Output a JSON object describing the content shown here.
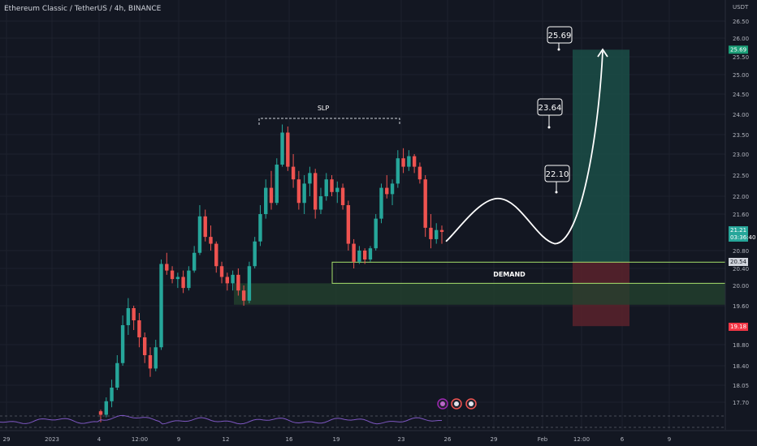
{
  "header": {
    "symbol": "Ethereum Classic / TetherUS",
    "interval": "4h",
    "exchange": "BINANCE",
    "sep1": " / ",
    "sep2": ", "
  },
  "currency": "USDT",
  "colors": {
    "background": "#131722",
    "grid": "#1e222d",
    "up": "#26a69a",
    "down": "#ef5350",
    "text": "#b2b5be",
    "target_zone": "#1b4d47",
    "stop_zone": "#5a222b",
    "demand_zone": "#23412e",
    "demand_line": "#a7e06c",
    "indicator": "#7e57c2",
    "projection": "#ffffff"
  },
  "chart_data": {
    "type": "candlestick",
    "y_ticks": [
      "26.50",
      "26.00",
      "25.50",
      "25.00",
      "24.50",
      "24.00",
      "23.50",
      "23.00",
      "22.50",
      "22.00",
      "21.60",
      "20.80",
      "20.40",
      "20.00",
      "19.60",
      "18.80",
      "18.40",
      "18.05",
      "17.70"
    ],
    "x_ticks": [
      "29",
      "2023",
      "4",
      "12:00",
      "9",
      "12",
      "16",
      "19",
      "23",
      "26",
      "29",
      "Feb",
      "12:00",
      "6",
      "9"
    ],
    "candles": [
      [
        17.52,
        17.55,
        17.3,
        17.45
      ],
      [
        17.45,
        17.8,
        17.4,
        17.72
      ],
      [
        17.72,
        18.15,
        17.6,
        18.0
      ],
      [
        18.0,
        18.6,
        17.95,
        18.45
      ],
      [
        18.45,
        19.4,
        18.4,
        19.2
      ],
      [
        19.2,
        19.75,
        19.0,
        19.55
      ],
      [
        19.55,
        19.6,
        19.1,
        19.3
      ],
      [
        19.3,
        19.45,
        18.75,
        18.95
      ],
      [
        18.95,
        19.05,
        18.45,
        18.6
      ],
      [
        18.6,
        18.75,
        18.2,
        18.35
      ],
      [
        18.35,
        18.9,
        18.3,
        18.75
      ],
      [
        18.75,
        20.6,
        18.7,
        20.5
      ],
      [
        20.5,
        20.75,
        20.25,
        20.35
      ],
      [
        20.35,
        20.45,
        20.05,
        20.15
      ],
      [
        20.15,
        20.3,
        19.95,
        20.2
      ],
      [
        20.2,
        20.35,
        19.85,
        19.95
      ],
      [
        19.95,
        20.45,
        19.9,
        20.35
      ],
      [
        20.35,
        20.9,
        20.3,
        20.75
      ],
      [
        20.75,
        21.8,
        20.7,
        21.55
      ],
      [
        21.55,
        21.7,
        21.0,
        21.1
      ],
      [
        21.1,
        21.35,
        20.8,
        20.95
      ],
      [
        20.95,
        21.0,
        20.3,
        20.45
      ],
      [
        20.45,
        20.55,
        20.05,
        20.2
      ],
      [
        20.2,
        20.3,
        19.9,
        20.05
      ],
      [
        20.05,
        20.35,
        19.9,
        20.25
      ],
      [
        20.25,
        20.4,
        19.8,
        19.9
      ],
      [
        19.9,
        20.0,
        19.6,
        19.7
      ],
      [
        19.7,
        20.55,
        19.65,
        20.45
      ],
      [
        20.45,
        21.1,
        20.4,
        21.0
      ],
      [
        21.0,
        21.8,
        20.9,
        21.6
      ],
      [
        21.6,
        22.4,
        21.5,
        22.2
      ],
      [
        22.2,
        22.6,
        21.7,
        21.85
      ],
      [
        21.85,
        22.9,
        21.8,
        22.75
      ],
      [
        22.75,
        23.75,
        22.7,
        23.55
      ],
      [
        23.55,
        23.7,
        22.6,
        22.7
      ],
      [
        22.7,
        23.0,
        22.2,
        22.4
      ],
      [
        22.4,
        22.6,
        21.7,
        21.85
      ],
      [
        21.85,
        22.5,
        21.6,
        22.3
      ],
      [
        22.3,
        22.7,
        22.0,
        22.55
      ],
      [
        22.55,
        22.65,
        21.5,
        21.7
      ],
      [
        21.7,
        22.2,
        21.6,
        22.0
      ],
      [
        22.0,
        22.55,
        21.9,
        22.4
      ],
      [
        22.4,
        22.5,
        22.0,
        22.1
      ],
      [
        22.1,
        22.35,
        21.85,
        22.2
      ],
      [
        22.2,
        22.3,
        21.7,
        21.8
      ],
      [
        21.8,
        21.9,
        20.8,
        20.95
      ],
      [
        20.95,
        21.05,
        20.4,
        20.55
      ],
      [
        20.55,
        20.9,
        20.5,
        20.8
      ],
      [
        20.8,
        20.85,
        20.5,
        20.6
      ],
      [
        20.6,
        20.9,
        20.55,
        20.85
      ],
      [
        20.85,
        21.6,
        20.8,
        21.5
      ],
      [
        21.5,
        22.3,
        21.4,
        22.2
      ],
      [
        22.2,
        22.5,
        21.95,
        22.05
      ],
      [
        22.05,
        22.4,
        21.8,
        22.3
      ],
      [
        22.3,
        23.1,
        22.2,
        22.9
      ],
      [
        22.9,
        23.15,
        22.55,
        22.7
      ],
      [
        22.7,
        23.1,
        22.6,
        22.95
      ],
      [
        22.95,
        23.0,
        22.55,
        22.7
      ],
      [
        22.7,
        22.8,
        22.3,
        22.4
      ],
      [
        22.4,
        22.5,
        21.1,
        21.3
      ],
      [
        21.3,
        21.6,
        20.85,
        21.05
      ],
      [
        21.05,
        21.4,
        20.95,
        21.25
      ],
      [
        21.25,
        21.35,
        20.95,
        21.21
      ]
    ],
    "projection_path_price": [
      21.0,
      21.95,
      21.3,
      25.69
    ],
    "ranges": {
      "target": [
        20.54,
        25.69
      ],
      "stop": [
        19.18,
        20.54
      ],
      "demand": [
        19.62,
        20.05
      ],
      "demand_line": 20.54,
      "slp": 23.9
    },
    "labels": {
      "slp": "SLP",
      "demand": "DEMAND",
      "targets": [
        "22.10",
        "23.64",
        "25.69"
      ]
    },
    "price_tags": {
      "target": "25.69",
      "current": "21.21",
      "countdown": "03:36:40",
      "entry": "20.54",
      "stop": "19.18"
    },
    "event_icons": [
      "flash-icon",
      "us-flag-icon",
      "us-flag-icon"
    ]
  }
}
